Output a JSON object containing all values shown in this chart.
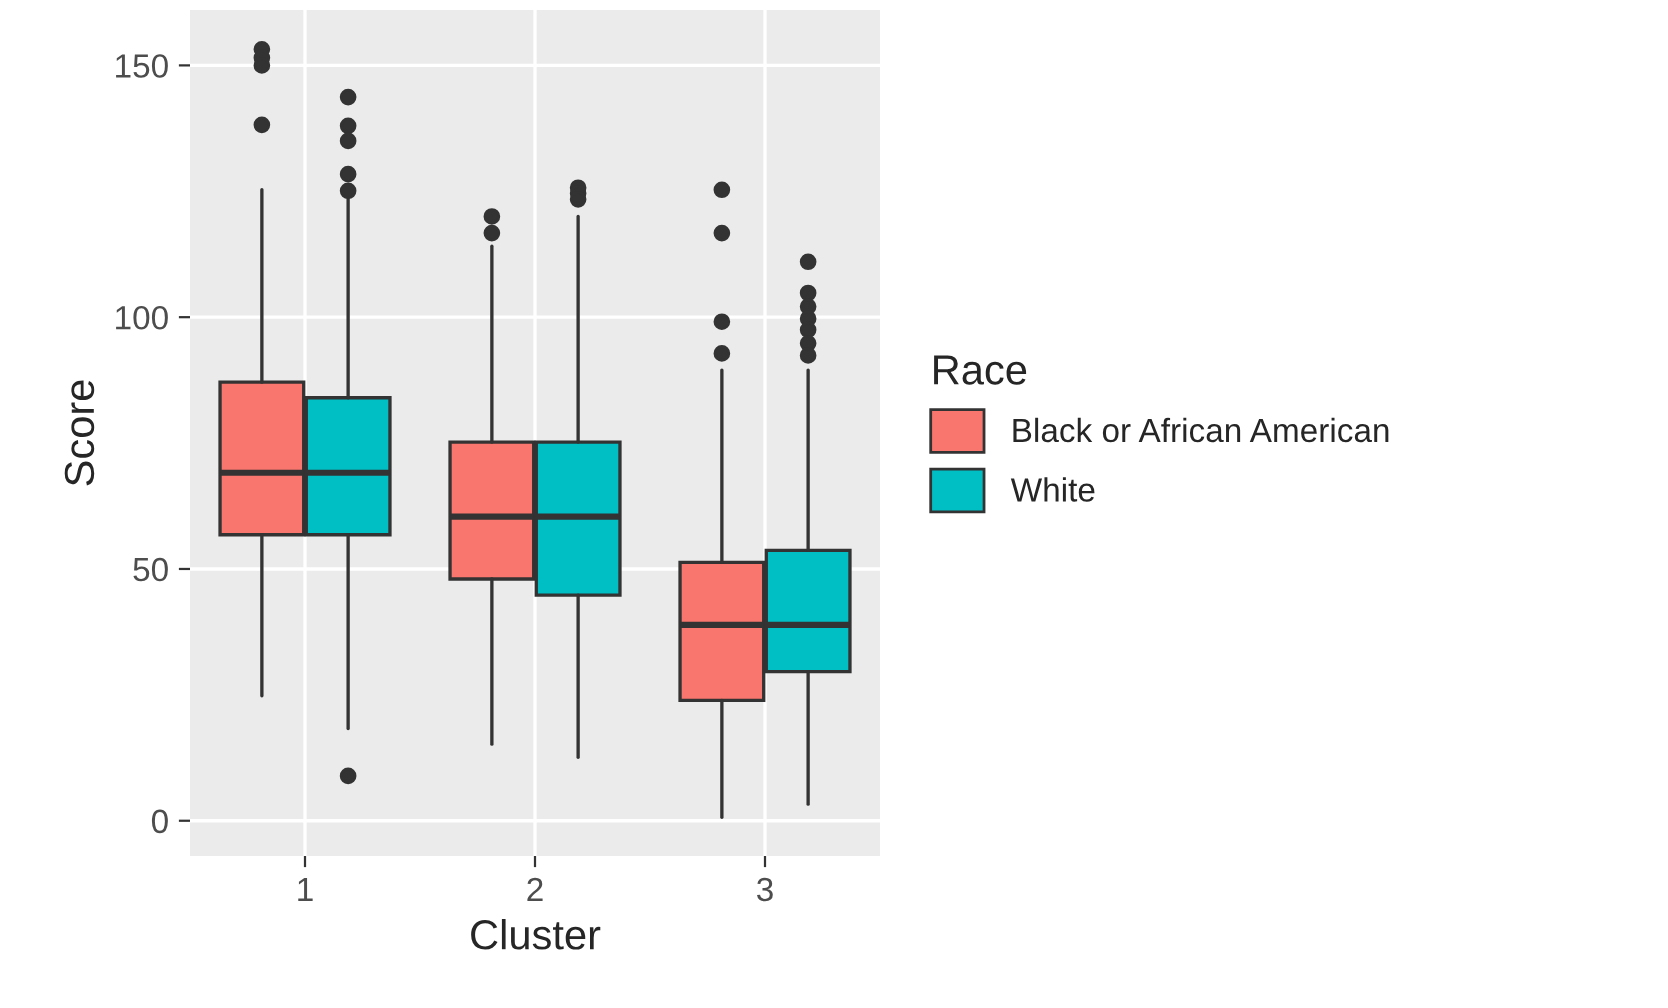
{
  "chart_data": {
    "type": "box",
    "xlabel": "Cluster",
    "ylabel": "Score",
    "legend_title": "Race",
    "categories": [
      "1",
      "2",
      "3"
    ],
    "ylim": [
      -7,
      161
    ],
    "yticks": [
      0,
      50,
      100,
      150
    ],
    "grid": true,
    "legend": "right",
    "series": [
      {
        "name": "Black or African American",
        "color": "#f8766d",
        "boxes": [
          {
            "low": 24.8,
            "q1": 56.8,
            "median": 69.1,
            "q3": 87.1,
            "high": 125.3,
            "outliers": [
              153.2,
              151.5,
              150,
              138.2
            ]
          },
          {
            "low": 15.2,
            "q1": 48,
            "median": 60.4,
            "q3": 75.2,
            "high": 114.1,
            "outliers": [
              120,
              116.7
            ]
          },
          {
            "low": 0.7,
            "q1": 23.9,
            "median": 38.9,
            "q3": 51.3,
            "high": 89.5,
            "outliers": [
              125.3,
              116.7,
              99.1,
              92.8
            ]
          }
        ]
      },
      {
        "name": "White",
        "color": "#00bfc4",
        "boxes": [
          {
            "low": 18.3,
            "q1": 56.8,
            "median": 69.1,
            "q3": 84,
            "high": 123.8,
            "outliers": [
              8.9,
              143.7,
              138,
              135,
              128.4,
              125.1
            ]
          },
          {
            "low": 12.6,
            "q1": 44.8,
            "median": 60.4,
            "q3": 75.2,
            "high": 120,
            "outliers": [
              125.7,
              124.6,
              123.4
            ]
          },
          {
            "low": 3.3,
            "q1": 29.6,
            "median": 38.9,
            "q3": 53.7,
            "high": 89.5,
            "outliers": [
              111,
              104.8,
              102.1,
              99.7,
              97.5,
              94.8,
              92.4
            ]
          }
        ]
      }
    ]
  }
}
